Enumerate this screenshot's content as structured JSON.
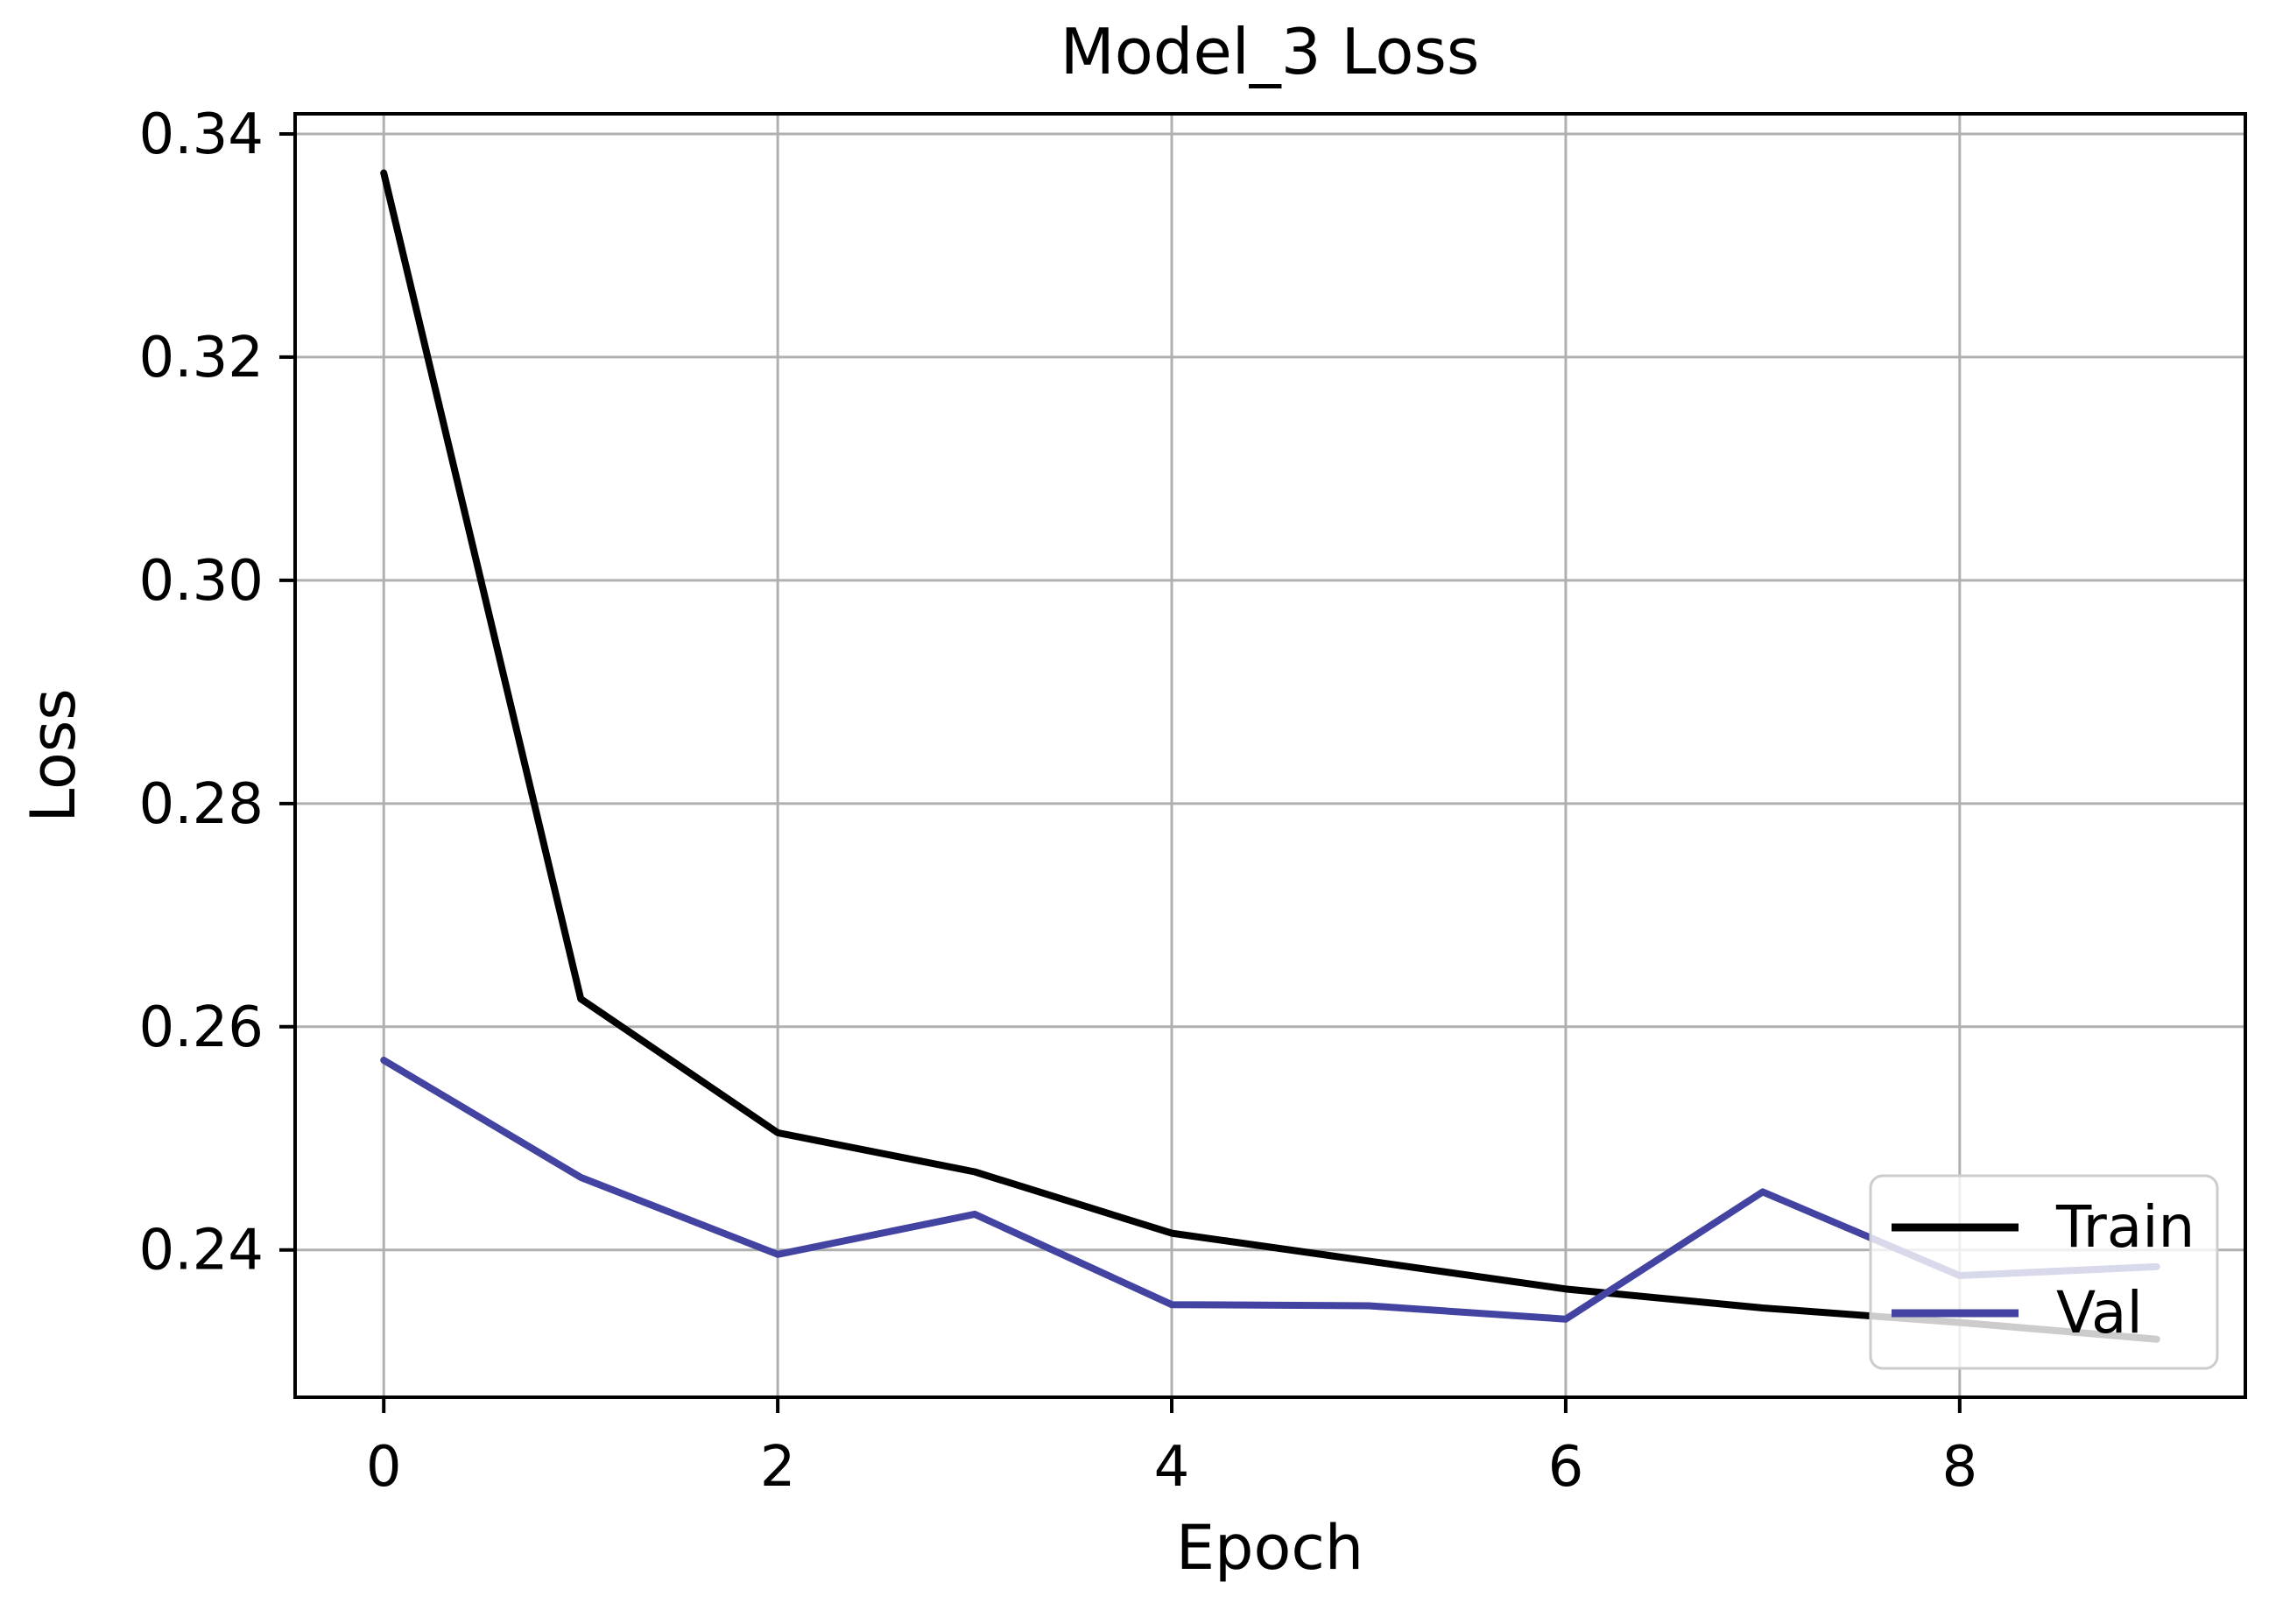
{
  "chart_data": {
    "type": "line",
    "title": "Model_3 Loss",
    "xlabel": "Epoch",
    "ylabel": "Loss",
    "x": [
      0,
      1,
      2,
      3,
      4,
      5,
      6,
      7,
      8,
      9
    ],
    "series": [
      {
        "name": "Train",
        "color": "#000000",
        "values": [
          0.3365,
          0.2625,
          0.2505,
          0.247,
          0.2415,
          0.239,
          0.2365,
          0.2348,
          0.2335,
          0.232
        ]
      },
      {
        "name": "Val",
        "color": "#4343A1",
        "values": [
          0.257,
          0.2465,
          0.2396,
          0.2432,
          0.2351,
          0.235,
          0.2338,
          0.2452,
          0.2377,
          0.2385
        ]
      }
    ],
    "xlim": [
      -0.45,
      9.45
    ],
    "ylim": [
      0.2268,
      0.3418
    ],
    "xticks": [
      0,
      2,
      4,
      6,
      8
    ],
    "xtick_labels": [
      "0",
      "2",
      "4",
      "6",
      "8"
    ],
    "yticks": [
      0.24,
      0.26,
      0.28,
      0.3,
      0.32,
      0.34
    ],
    "ytick_labels": [
      "0.24",
      "0.26",
      "0.28",
      "0.30",
      "0.32",
      "0.34"
    ],
    "grid": true,
    "grid_color": "#b0b0b0",
    "spine_color": "#000000",
    "background_color": "#ffffff",
    "line_width": 8,
    "legend": {
      "position": "lower right",
      "entries": [
        "Train",
        "Val"
      ],
      "face_color": "#ffffff",
      "face_alpha": 0.8,
      "edge_color": "#cccccc"
    }
  }
}
